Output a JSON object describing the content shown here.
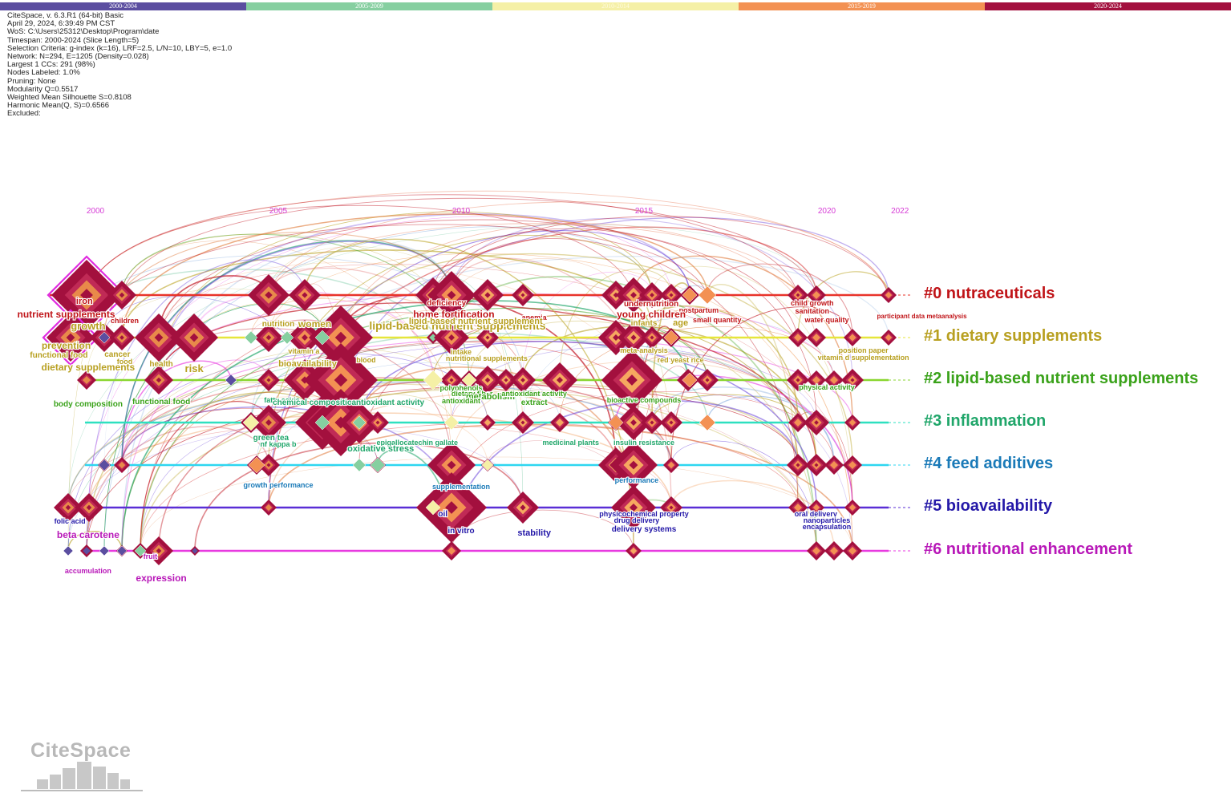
{
  "legend": {
    "periods": [
      {
        "label": "2000-2004",
        "color": "#5b4ea0"
      },
      {
        "label": "2005-2009",
        "color": "#86cfa0"
      },
      {
        "label": "2010-2014",
        "color": "#f5f0a6"
      },
      {
        "label": "2015-2019",
        "color": "#f39153"
      },
      {
        "label": "2020-2024",
        "color": "#a3103e"
      }
    ]
  },
  "info": {
    "lines": [
      "CiteSpace, v. 6.3.R1 (64-bit) Basic",
      "April 29, 2024, 6:39:49 PM CST",
      "WoS: C:\\Users\\25312\\Desktop\\Program\\date",
      "Timespan: 2000-2024 (Slice Length=5)",
      "Selection Criteria: g-index (k=16), LRF=2.5, L/N=10, LBY=5, e=1.0",
      "Network: N=294, E=1205 (Density=0.028)",
      "Largest 1 CCs: 291 (98%)",
      "Nodes Labeled: 1.0%",
      "Pruning: None",
      "Modularity Q=0.5517",
      "Weighted Mean Silhouette S=0.8108",
      "Harmonic Mean(Q, S)=0.6566",
      "Excluded:"
    ]
  },
  "timeline": {
    "year_color": "#d63cd6",
    "years": [
      {
        "year": "2000"
      },
      {
        "year": "2005"
      },
      {
        "year": "2010"
      },
      {
        "year": "2015"
      },
      {
        "year": "2020"
      },
      {
        "year": "2022"
      }
    ]
  },
  "clusters": [
    {
      "id": "#0",
      "label": "#0 nutraceuticals",
      "color": "#c01418",
      "line_color": "#e8332a"
    },
    {
      "id": "#1",
      "label": "#1 dietary supplements",
      "color": "#b8a021",
      "line_color": "#e6e63a"
    },
    {
      "id": "#2",
      "label": "#2 lipid-based nutrient supplements",
      "color": "#3aa21a",
      "line_color": "#8ad630"
    },
    {
      "id": "#3",
      "label": "#3 inflammation",
      "color": "#20a66a",
      "line_color": "#2ee0c0"
    },
    {
      "id": "#4",
      "label": "#4 feed additives",
      "color": "#1a7ab8",
      "line_color": "#2ed6f0"
    },
    {
      "id": "#5",
      "label": "#5 bioavailability",
      "color": "#2418a8",
      "line_color": "#5a2ed6"
    },
    {
      "id": "#6",
      "label": "#6 nutritional enhancement",
      "color": "#b818b8",
      "line_color": "#e83ae0"
    }
  ],
  "keywords": [
    {
      "text": "iron",
      "cluster": 0,
      "year": 1999.7,
      "dy": 11,
      "size": 11
    },
    {
      "text": "nutrient supplements",
      "cluster": 0,
      "year": 1999.2,
      "dy": 28,
      "size": 12
    },
    {
      "text": "children",
      "cluster": 0,
      "year": 2000.8,
      "dy": 35,
      "size": 9
    },
    {
      "text": "deficiency",
      "cluster": 0,
      "year": 2009.6,
      "dy": 13,
      "size": 10
    },
    {
      "text": "home fortification",
      "cluster": 0,
      "year": 2009.8,
      "dy": 28,
      "size": 12
    },
    {
      "text": "anemia",
      "cluster": 0,
      "year": 2012.0,
      "dy": 31,
      "size": 9
    },
    {
      "text": "undernutrition",
      "cluster": 0,
      "year": 2015.2,
      "dy": 14,
      "size": 10
    },
    {
      "text": "postpartum",
      "cluster": 0,
      "year": 2016.5,
      "dy": 22,
      "size": 9
    },
    {
      "text": "young children",
      "cluster": 0,
      "year": 2015.2,
      "dy": 28,
      "size": 12
    },
    {
      "text": "small quantity",
      "cluster": 0,
      "year": 2017.0,
      "dy": 34,
      "size": 9
    },
    {
      "text": "child growth",
      "cluster": 0,
      "year": 2019.6,
      "dy": 13,
      "size": 9
    },
    {
      "text": "sanitation",
      "cluster": 0,
      "year": 2019.6,
      "dy": 23,
      "size": 9
    },
    {
      "text": "water quality",
      "cluster": 0,
      "year": 220.0,
      "dy": 34,
      "size": 9
    },
    {
      "text": "participant data metaanalysis",
      "cluster": 0,
      "year": 2022.6,
      "dy": 29,
      "size": 8
    },
    {
      "text": "growth",
      "cluster": 1,
      "year": 1999.8,
      "dy": -10,
      "size": 13
    },
    {
      "text": "nutrition",
      "cluster": 1,
      "year": 2005.0,
      "dy": -14,
      "size": 10
    },
    {
      "text": "women",
      "cluster": 1,
      "year": 2006.0,
      "dy": -13,
      "size": 12
    },
    {
      "text": "lipid-based nutrient supplements",
      "cluster": 1,
      "year": 2009.9,
      "dy": -10,
      "size": 14
    },
    {
      "text": "lipid-based nutrient supplement",
      "cluster": 1,
      "year": 2010.4,
      "dy": -17,
      "size": 11
    },
    {
      "text": "infants",
      "cluster": 1,
      "year": 2015.0,
      "dy": -15,
      "size": 10
    },
    {
      "text": "age",
      "cluster": 1,
      "year": 2016.0,
      "dy": -15,
      "size": 11
    },
    {
      "text": "prevention",
      "cluster": 1,
      "year": 1999.2,
      "dy": 14,
      "size": 12
    },
    {
      "text": "functional food",
      "cluster": 1,
      "year": 1999.0,
      "dy": 25,
      "size": 10
    },
    {
      "text": "cancer",
      "cluster": 1,
      "year": 2000.6,
      "dy": 24,
      "size": 10
    },
    {
      "text": "food",
      "cluster": 1,
      "year": 2000.8,
      "dy": 33,
      "size": 9
    },
    {
      "text": "health",
      "cluster": 1,
      "year": 2001.8,
      "dy": 36,
      "size": 10
    },
    {
      "text": "dietary supplements",
      "cluster": 1,
      "year": 1999.8,
      "dy": 41,
      "size": 12
    },
    {
      "text": "risk",
      "cluster": 1,
      "year": 2002.7,
      "dy": 43,
      "size": 13
    },
    {
      "text": "vitamin a",
      "cluster": 1,
      "year": 2005.7,
      "dy": 20,
      "size": 9
    },
    {
      "text": "bioavailability",
      "cluster": 1,
      "year": 2005.8,
      "dy": 36,
      "size": 11
    },
    {
      "text": "blood",
      "cluster": 1,
      "year": 2007.4,
      "dy": 31,
      "size": 9
    },
    {
      "text": "intake",
      "cluster": 1,
      "year": 2010.0,
      "dy": 21,
      "size": 9
    },
    {
      "text": "nutritional supplements",
      "cluster": 1,
      "year": 2010.7,
      "dy": 29,
      "size": 9
    },
    {
      "text": "meta-analysis",
      "cluster": 1,
      "year": 2015.0,
      "dy": 19,
      "size": 9
    },
    {
      "text": "red yeast rice",
      "cluster": 1,
      "year": 2016.0,
      "dy": 31,
      "size": 9
    },
    {
      "text": "position paper",
      "cluster": 1,
      "year": 2021.0,
      "dy": 19,
      "size": 9
    },
    {
      "text": "vitamin d supplementation",
      "cluster": 1,
      "year": 2021.0,
      "dy": 28,
      "size": 9
    },
    {
      "text": "body composition",
      "cluster": 2,
      "year": 1999.8,
      "dy": 33,
      "size": 10
    },
    {
      "text": "functional food",
      "cluster": 2,
      "year": 2001.8,
      "dy": 30,
      "size": 10
    },
    {
      "text": "polyphenols",
      "cluster": 2,
      "year": 2010.0,
      "dy": 13,
      "size": 9
    },
    {
      "text": "dietary fiber",
      "cluster": 2,
      "year": 2010.3,
      "dy": 20,
      "size": 9
    },
    {
      "text": "metabolism",
      "cluster": 2,
      "year": 2010.8,
      "dy": 24,
      "size": 11
    },
    {
      "text": "antioxidant activity",
      "cluster": 2,
      "year": 2012.0,
      "dy": 20,
      "size": 9
    },
    {
      "text": "antioxidant",
      "cluster": 2,
      "year": 2010.0,
      "dy": 29,
      "size": 9
    },
    {
      "text": "extract",
      "cluster": 2,
      "year": 2012.0,
      "dy": 31,
      "size": 10
    },
    {
      "text": "bioactive compounds",
      "cluster": 2,
      "year": 2015.0,
      "dy": 28,
      "size": 9
    },
    {
      "text": "physical activity",
      "cluster": 2,
      "year": 2020.0,
      "dy": 12,
      "size": 9
    },
    {
      "text": "fatty acids",
      "cluster": 3,
      "year": 2005.1,
      "dy": -25,
      "size": 9
    },
    {
      "text": "chemical composition",
      "cluster": 3,
      "year": 2006.0,
      "dy": -22,
      "size": 10
    },
    {
      "text": "antioxidant activity",
      "cluster": 3,
      "year": 2008.0,
      "dy": -22,
      "size": 10
    },
    {
      "text": "green tea",
      "cluster": 3,
      "year": 2004.8,
      "dy": 22,
      "size": 10
    },
    {
      "text": "nf kappa b",
      "cluster": 3,
      "year": 2005.0,
      "dy": 30,
      "size": 9
    },
    {
      "text": "epigallocatechin gallate",
      "cluster": 3,
      "year": 2008.8,
      "dy": 28,
      "size": 9
    },
    {
      "text": "oxidative stress",
      "cluster": 3,
      "year": 2007.8,
      "dy": 36,
      "size": 11
    },
    {
      "text": "medicinal plants",
      "cluster": 3,
      "year": 2013.0,
      "dy": 28,
      "size": 9
    },
    {
      "text": "insulin resistance",
      "cluster": 3,
      "year": 2015.0,
      "dy": 28,
      "size": 9
    },
    {
      "text": "growth performance",
      "cluster": 4,
      "year": 2005.0,
      "dy": 28,
      "size": 9
    },
    {
      "text": "supplementation",
      "cluster": 4,
      "year": 2010.0,
      "dy": 30,
      "size": 9
    },
    {
      "text": "performance",
      "cluster": 4,
      "year": 2014.8,
      "dy": 22,
      "size": 9
    },
    {
      "text": "folic acid",
      "cluster": 5,
      "year": 1999.3,
      "dy": 20,
      "size": 9
    },
    {
      "text": "oil",
      "cluster": 5,
      "year": 2009.5,
      "dy": 11,
      "size": 10
    },
    {
      "text": "in vitro",
      "cluster": 5,
      "year": 2010.0,
      "dy": 32,
      "size": 10
    },
    {
      "text": "stability",
      "cluster": 5,
      "year": 2012.0,
      "dy": 35,
      "size": 11
    },
    {
      "text": "physicochemical property",
      "cluster": 5,
      "year": 2015.0,
      "dy": 11,
      "size": 9
    },
    {
      "text": "drug delivery",
      "cluster": 5,
      "year": 2014.8,
      "dy": 19,
      "size": 9
    },
    {
      "text": "delivery systems",
      "cluster": 5,
      "year": 2015.0,
      "dy": 30,
      "size": 10
    },
    {
      "text": "oral delivery",
      "cluster": 5,
      "year": 2019.7,
      "dy": 11,
      "size": 9
    },
    {
      "text": "nanoparticles",
      "cluster": 5,
      "year": 220.0,
      "dy": 19,
      "size": 9
    },
    {
      "text": "encapsulation",
      "cluster": 5,
      "year": 2020.0,
      "dy": 27,
      "size": 9
    },
    {
      "text": "beta carotene",
      "cluster": 6,
      "year": 1999.8,
      "dy": -16,
      "size": 12
    },
    {
      "text": "accumulation",
      "cluster": 6,
      "year": 1999.8,
      "dy": 28,
      "size": 9
    },
    {
      "text": "fruit",
      "cluster": 6,
      "year": 2001.5,
      "dy": 10,
      "size": 9
    },
    {
      "text": "expression",
      "cluster": 6,
      "year": 2001.8,
      "dy": 38,
      "size": 12
    }
  ],
  "logo": {
    "text": "CiteSpace"
  }
}
